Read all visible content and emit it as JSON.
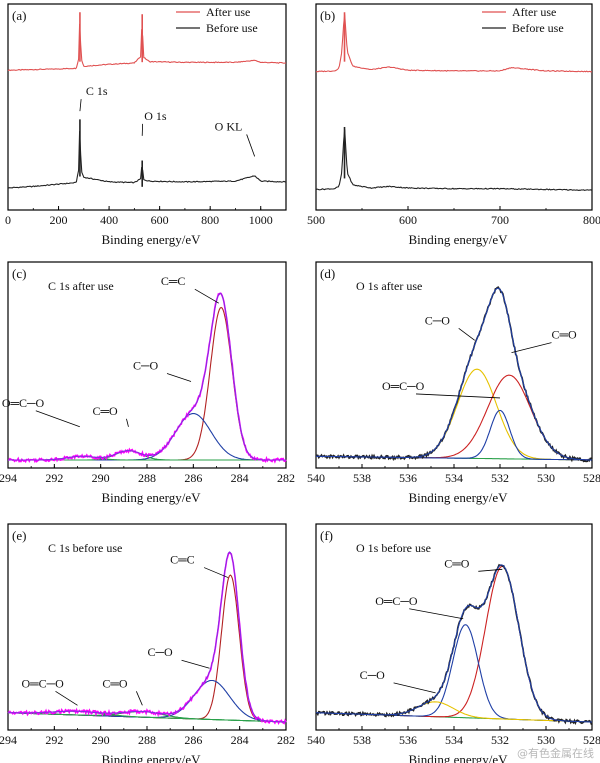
{
  "chart_data": [
    {
      "type": "line",
      "panel_label": "(a)",
      "xlabel": "Binding energy/eV",
      "ylabel": "",
      "xlim": [
        0,
        1100
      ],
      "x_ticks": [
        0,
        200,
        400,
        600,
        800,
        1000
      ],
      "legend_position": "top-right",
      "series": [
        {
          "name": "After use",
          "color": "#e05252",
          "x": [
            0,
            100,
            200,
            270,
            280,
            284.6,
            289,
            300,
            400,
            500,
            525,
            531,
            535,
            560,
            700,
            900,
            976,
            1000,
            1100
          ],
          "y": [
            0.12,
            0.13,
            0.14,
            0.15,
            0.3,
            1.0,
            0.3,
            0.18,
            0.21,
            0.23,
            0.33,
            0.97,
            0.32,
            0.25,
            0.24,
            0.24,
            0.27,
            0.24,
            0.23
          ]
        },
        {
          "name": "Before use",
          "color": "#222222",
          "x": [
            0,
            100,
            200,
            270,
            280,
            284.6,
            289,
            300,
            400,
            500,
            525,
            531,
            535,
            560,
            700,
            900,
            976,
            1000,
            1100
          ],
          "y": [
            0.1,
            0.12,
            0.15,
            0.17,
            0.35,
            1.0,
            0.33,
            0.24,
            0.18,
            0.17,
            0.22,
            0.46,
            0.21,
            0.19,
            0.18,
            0.19,
            0.26,
            0.19,
            0.18
          ]
        }
      ],
      "annotations": [
        "C 1s",
        "O 1s",
        "O KL"
      ]
    },
    {
      "type": "line",
      "panel_label": "(b)",
      "xlabel": "Binding energy/eV",
      "ylabel": "",
      "xlim": [
        500,
        800
      ],
      "x_ticks": [
        500,
        600,
        700,
        800
      ],
      "legend_position": "top-right",
      "series": [
        {
          "name": "After use",
          "color": "#e05252",
          "x": [
            500,
            520,
            525,
            528,
            531,
            534,
            540,
            560,
            580,
            600,
            650,
            700,
            712,
            750,
            800
          ],
          "y": [
            0.1,
            0.11,
            0.15,
            0.4,
            1.0,
            0.4,
            0.18,
            0.13,
            0.17,
            0.12,
            0.11,
            0.11,
            0.16,
            0.11,
            0.1
          ]
        },
        {
          "name": "Before use",
          "color": "#222222",
          "x": [
            500,
            520,
            525,
            528,
            531,
            534,
            540,
            560,
            580,
            600,
            650,
            700,
            750,
            800
          ],
          "y": [
            0.08,
            0.09,
            0.12,
            0.3,
            0.9,
            0.3,
            0.14,
            0.1,
            0.12,
            0.1,
            0.09,
            0.09,
            0.08,
            0.07
          ]
        }
      ]
    },
    {
      "type": "line",
      "panel_label": "(c)",
      "title": "C 1s after use",
      "xlabel": "Binding energy/eV",
      "ylabel": "",
      "xlim": [
        294,
        282
      ],
      "x_reversed": true,
      "x_ticks": [
        294,
        292,
        290,
        288,
        286,
        284,
        282
      ],
      "peaks": [
        {
          "label": "C═C",
          "center": 284.8,
          "height": 0.82,
          "fwhm": 1.1,
          "color": "#b22222"
        },
        {
          "label": "C─O",
          "center": 286.0,
          "height": 0.25,
          "fwhm": 1.8,
          "color": "#1f3fa6"
        },
        {
          "label": "C═O",
          "center": 288.8,
          "height": 0.05,
          "fwhm": 1.3,
          "color": "#2aa04a"
        },
        {
          "label": "O═C─O",
          "center": 290.8,
          "height": 0.02,
          "fwhm": 1.5,
          "color": "#2aa04a"
        }
      ],
      "background": {
        "left": 0.0,
        "right": 0.0
      },
      "envelope_color": "#8a2be2",
      "measured_color": "#ff00ff"
    },
    {
      "type": "line",
      "panel_label": "(d)",
      "title": "O 1s after use",
      "xlabel": "Binding energy/eV",
      "ylabel": "",
      "xlim": [
        540,
        528
      ],
      "x_reversed": true,
      "x_ticks": [
        540,
        538,
        536,
        534,
        532,
        530,
        528
      ],
      "peaks": [
        {
          "label": "C─O",
          "center": 533.0,
          "height": 0.48,
          "fwhm": 2.0,
          "color": "#e6c200"
        },
        {
          "label": "C═O",
          "center": 531.6,
          "height": 0.45,
          "fwhm": 2.2,
          "color": "#cc2222"
        },
        {
          "label": "O═C─O",
          "center": 532.0,
          "height": 0.26,
          "fwhm": 1.0,
          "color": "#1f3fa6"
        }
      ],
      "background": {
        "left": 0.02,
        "right": 0.0
      },
      "envelope_color": "#1f3fa6",
      "measured_color": "#222222"
    },
    {
      "type": "line",
      "panel_label": "(e)",
      "title": "C 1s before use",
      "xlabel": "Binding energy/eV",
      "ylabel": "",
      "xlim": [
        294,
        282
      ],
      "x_reversed": true,
      "x_ticks": [
        294,
        292,
        290,
        288,
        286,
        284,
        282
      ],
      "peaks": [
        {
          "label": "C═C",
          "center": 284.4,
          "height": 0.78,
          "fwhm": 0.9,
          "color": "#b22222"
        },
        {
          "label": "C─O",
          "center": 285.2,
          "height": 0.21,
          "fwhm": 1.8,
          "color": "#1f3fa6"
        },
        {
          "label": "C═O",
          "center": 288.2,
          "height": 0.03,
          "fwhm": 2.0,
          "color": "#2aa04a"
        },
        {
          "label": "O═C─O",
          "center": 291.0,
          "height": 0.02,
          "fwhm": 2.5,
          "color": "#2aa04a"
        }
      ],
      "background": {
        "left": 0.05,
        "right": 0.0
      },
      "envelope_color": "#8a2be2",
      "measured_color": "#ff00ff"
    },
    {
      "type": "line",
      "panel_label": "(f)",
      "title": "O 1s before use",
      "xlabel": "Binding energy/eV",
      "ylabel": "",
      "xlim": [
        540,
        528
      ],
      "x_reversed": true,
      "x_ticks": [
        540,
        538,
        536,
        534,
        532,
        530,
        528
      ],
      "peaks": [
        {
          "label": "C═O",
          "center": 531.9,
          "height": 0.82,
          "fwhm": 1.7,
          "color": "#cc2222"
        },
        {
          "label": "O═C─O",
          "center": 533.5,
          "height": 0.5,
          "fwhm": 1.3,
          "color": "#1f3fa6"
        },
        {
          "label": "C─O",
          "center": 534.8,
          "height": 0.08,
          "fwhm": 1.8,
          "color": "#e6c200"
        }
      ],
      "background": {
        "left": 0.05,
        "right": 0.0
      },
      "envelope_color": "#1f3fa6",
      "measured_color": "#222222"
    }
  ],
  "watermark": "@有色金属在线"
}
